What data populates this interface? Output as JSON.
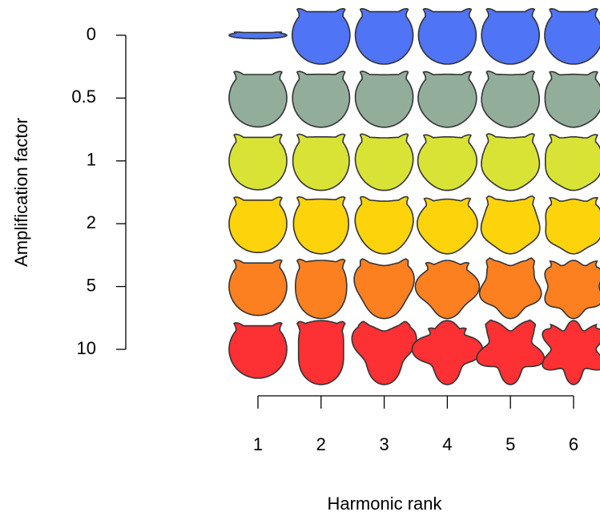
{
  "chart_data": {
    "type": "shape-grid",
    "x_label": "Harmonic rank",
    "y_label": "Amplification factor",
    "categories": [
      1,
      2,
      3,
      4,
      5,
      6
    ],
    "y_categories": [
      0,
      0.5,
      1,
      2,
      5,
      10
    ],
    "colors": [
      "#4f74f5",
      "#93ad9b",
      "#d9e335",
      "#fdd30b",
      "#fd8020",
      "#fd3034"
    ]
  }
}
